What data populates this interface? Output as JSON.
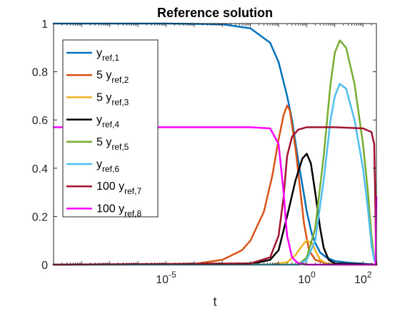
{
  "chart_data": {
    "type": "line",
    "title": "Reference solution",
    "xlabel": "t",
    "ylabel": "",
    "xscale": "log",
    "xlim": [
      1e-09,
      300
    ],
    "ylim": [
      0,
      1
    ],
    "grid": false,
    "legend_position": "top-left",
    "x_ticks": [
      {
        "value": 1e-05,
        "base": "10",
        "exp": "-5"
      },
      {
        "value": 1,
        "base": "10",
        "exp": "0"
      },
      {
        "value": 100,
        "base": "10",
        "exp": "2"
      }
    ],
    "y_ticks": [
      {
        "value": 0,
        "label": "0"
      },
      {
        "value": 0.2,
        "label": "0.2"
      },
      {
        "value": 0.4,
        "label": "0.4"
      },
      {
        "value": 0.6,
        "label": "0.6"
      },
      {
        "value": 0.8,
        "label": "0.8"
      },
      {
        "value": 1,
        "label": "1"
      }
    ],
    "series": [
      {
        "legend_prefix": "",
        "legend_main": "y",
        "legend_sub": "ref,1",
        "color": "#0072BD",
        "points": [
          [
            1e-09,
            1
          ],
          [
            1e-05,
            1
          ],
          [
            0.001,
            0.997
          ],
          [
            0.01,
            0.98
          ],
          [
            0.05,
            0.92
          ],
          [
            0.1,
            0.84
          ],
          [
            0.2,
            0.7
          ],
          [
            0.3,
            0.6
          ],
          [
            0.5,
            0.43
          ],
          [
            0.8,
            0.29
          ],
          [
            1,
            0.22
          ],
          [
            1.5,
            0.13
          ],
          [
            2,
            0.09
          ],
          [
            3,
            0.05
          ],
          [
            5,
            0.03
          ],
          [
            10,
            0.015
          ],
          [
            30,
            0.008
          ],
          [
            100,
            0.004
          ],
          [
            300,
            0
          ]
        ]
      },
      {
        "legend_prefix": "5 ",
        "legend_main": "y",
        "legend_sub": "ref,2",
        "color": "#D95319",
        "points": [
          [
            1e-09,
            0
          ],
          [
            1e-06,
            0
          ],
          [
            0.0001,
            0.003
          ],
          [
            0.001,
            0.02
          ],
          [
            0.005,
            0.06
          ],
          [
            0.01,
            0.1
          ],
          [
            0.03,
            0.22
          ],
          [
            0.06,
            0.37
          ],
          [
            0.1,
            0.52
          ],
          [
            0.15,
            0.62
          ],
          [
            0.2,
            0.66
          ],
          [
            0.25,
            0.64
          ],
          [
            0.4,
            0.48
          ],
          [
            0.6,
            0.3
          ],
          [
            0.8,
            0.17
          ],
          [
            1.2,
            0.06
          ],
          [
            2,
            0.02
          ],
          [
            5,
            0.005
          ],
          [
            10,
            0
          ],
          [
            300,
            0
          ]
        ]
      },
      {
        "legend_prefix": "5 ",
        "legend_main": "y",
        "legend_sub": "ref,3",
        "color": "#EDB120",
        "points": [
          [
            1e-09,
            0
          ],
          [
            0.05,
            0
          ],
          [
            0.2,
            0.01
          ],
          [
            0.4,
            0.04
          ],
          [
            0.7,
            0.08
          ],
          [
            1,
            0.1
          ],
          [
            1.5,
            0.09
          ],
          [
            2.2,
            0.05
          ],
          [
            3,
            0.02
          ],
          [
            5,
            0.005
          ],
          [
            10,
            0
          ],
          [
            300,
            0
          ]
        ]
      },
      {
        "legend_prefix": "",
        "legend_main": "y",
        "legend_sub": "ref,4",
        "color": "#000000",
        "points": [
          [
            1e-09,
            0
          ],
          [
            0.01,
            0.002
          ],
          [
            0.05,
            0.02
          ],
          [
            0.1,
            0.06
          ],
          [
            0.2,
            0.2
          ],
          [
            0.4,
            0.35
          ],
          [
            0.7,
            0.44
          ],
          [
            1,
            0.46
          ],
          [
            1.4,
            0.42
          ],
          [
            2,
            0.3
          ],
          [
            3,
            0.15
          ],
          [
            4,
            0.07
          ],
          [
            6,
            0.02
          ],
          [
            10,
            0.005
          ],
          [
            300,
            0
          ]
        ]
      },
      {
        "legend_prefix": "5 ",
        "legend_main": "y",
        "legend_sub": "ref,5",
        "color": "#77AC30",
        "points": [
          [
            1e-09,
            0
          ],
          [
            0.5,
            0
          ],
          [
            1,
            0.03
          ],
          [
            2,
            0.15
          ],
          [
            4,
            0.45
          ],
          [
            7,
            0.75
          ],
          [
            10,
            0.88
          ],
          [
            15,
            0.93
          ],
          [
            25,
            0.9
          ],
          [
            50,
            0.75
          ],
          [
            100,
            0.5
          ],
          [
            150,
            0.3
          ],
          [
            200,
            0.12
          ],
          [
            250,
            0.02
          ],
          [
            300,
            0
          ]
        ]
      },
      {
        "legend_prefix": "",
        "legend_main": "y",
        "legend_sub": "ref,6",
        "color": "#4DBEEE",
        "points": [
          [
            1e-09,
            0
          ],
          [
            0.5,
            0
          ],
          [
            1,
            0.02
          ],
          [
            2,
            0.1
          ],
          [
            4,
            0.35
          ],
          [
            7,
            0.6
          ],
          [
            10,
            0.7
          ],
          [
            15,
            0.75
          ],
          [
            25,
            0.73
          ],
          [
            50,
            0.6
          ],
          [
            100,
            0.4
          ],
          [
            150,
            0.23
          ],
          [
            200,
            0.08
          ],
          [
            250,
            0.02
          ],
          [
            300,
            0
          ]
        ]
      },
      {
        "legend_prefix": "100 ",
        "legend_main": "y",
        "legend_sub": "ref,7",
        "color": "#A2142F",
        "points": [
          [
            1e-09,
            0
          ],
          [
            0.01,
            0.005
          ],
          [
            0.05,
            0.03
          ],
          [
            0.1,
            0.12
          ],
          [
            0.15,
            0.28
          ],
          [
            0.2,
            0.45
          ],
          [
            0.3,
            0.53
          ],
          [
            0.5,
            0.56
          ],
          [
            1,
            0.57
          ],
          [
            10,
            0.57
          ],
          [
            100,
            0.565
          ],
          [
            200,
            0.55
          ],
          [
            250,
            0.5
          ],
          [
            270,
            0.3
          ],
          [
            290,
            0.02
          ],
          [
            300,
            0
          ]
        ]
      },
      {
        "legend_prefix": "100 ",
        "legend_main": "y",
        "legend_sub": "ref,8",
        "color": "#FF00FF",
        "points": [
          [
            1e-09,
            0.57
          ],
          [
            0.01,
            0.57
          ],
          [
            0.05,
            0.565
          ],
          [
            0.1,
            0.5
          ],
          [
            0.15,
            0.3
          ],
          [
            0.2,
            0.12
          ],
          [
            0.3,
            0.03
          ],
          [
            0.5,
            0.005
          ],
          [
            1,
            0
          ],
          [
            280,
            0
          ],
          [
            290,
            0.15
          ],
          [
            300,
            0.28
          ]
        ]
      }
    ]
  }
}
